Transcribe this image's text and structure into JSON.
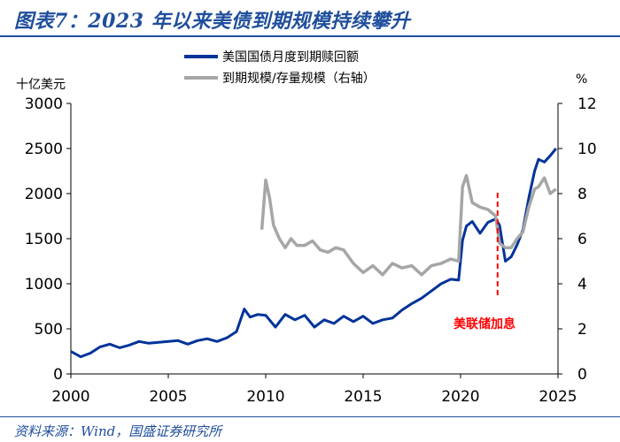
{
  "title": "图表7：2023 年以来美债到期规模持续攀升",
  "source": "资料来源：Wind，国盛证券研究所",
  "chart_data": {
    "type": "line",
    "yleft_unit": "十亿美元",
    "yright_unit": "%",
    "xlim": [
      2000,
      2025
    ],
    "ylim_left": [
      0,
      3000
    ],
    "ylim_right": [
      0,
      12
    ],
    "x_ticks": [
      "2000",
      "2005",
      "2010",
      "2015",
      "2020",
      "2025"
    ],
    "y_left_ticks": [
      "0",
      "500",
      "1000",
      "1500",
      "2000",
      "2500",
      "3000"
    ],
    "y_right_ticks": [
      "0",
      "2",
      "4",
      "6",
      "8",
      "10",
      "12"
    ],
    "grid": false,
    "legend": "top-center",
    "annotation": {
      "x": 2021.9,
      "text": "美联储加息"
    },
    "series": [
      {
        "name": "美国国债月度到期赎回额",
        "axis": "left",
        "color": "#003399",
        "x": [
          2000.0,
          2000.5,
          2001.0,
          2001.5,
          2002.0,
          2002.5,
          2003.0,
          2003.5,
          2004.0,
          2004.5,
          2005.0,
          2005.5,
          2006.0,
          2006.5,
          2007.0,
          2007.5,
          2008.0,
          2008.5,
          2008.9,
          2009.2,
          2009.6,
          2010.0,
          2010.5,
          2011.0,
          2011.5,
          2012.0,
          2012.5,
          2013.0,
          2013.5,
          2014.0,
          2014.5,
          2015.0,
          2015.5,
          2016.0,
          2016.5,
          2017.0,
          2017.5,
          2018.0,
          2018.5,
          2019.0,
          2019.5,
          2019.9,
          2020.1,
          2020.3,
          2020.6,
          2021.0,
          2021.4,
          2021.8,
          2022.0,
          2022.3,
          2022.6,
          2022.9,
          2023.2,
          2023.5,
          2023.8,
          2024.0,
          2024.3,
          2024.6,
          2024.9
        ],
        "y": [
          250,
          190,
          230,
          300,
          330,
          290,
          320,
          360,
          340,
          350,
          360,
          370,
          330,
          370,
          390,
          360,
          400,
          470,
          720,
          630,
          660,
          650,
          520,
          660,
          600,
          650,
          520,
          600,
          560,
          640,
          580,
          640,
          560,
          600,
          620,
          710,
          780,
          840,
          920,
          1000,
          1050,
          1040,
          1480,
          1640,
          1690,
          1560,
          1680,
          1720,
          1650,
          1250,
          1300,
          1430,
          1600,
          1950,
          2250,
          2380,
          2350,
          2420,
          2500
        ]
      },
      {
        "name": "到期规模/存量规模（右轴）",
        "axis": "right",
        "color": "#a6a6a6",
        "x": [
          2009.8,
          2010.0,
          2010.2,
          2010.4,
          2010.7,
          2011.0,
          2011.3,
          2011.6,
          2012.0,
          2012.4,
          2012.8,
          2013.2,
          2013.6,
          2014.0,
          2014.5,
          2015.0,
          2015.5,
          2016.0,
          2016.5,
          2017.0,
          2017.5,
          2018.0,
          2018.5,
          2019.0,
          2019.5,
          2019.9,
          2020.1,
          2020.3,
          2020.6,
          2021.0,
          2021.4,
          2021.8,
          2022.0,
          2022.3,
          2022.6,
          2022.9,
          2023.2,
          2023.5,
          2023.8,
          2024.0,
          2024.3,
          2024.6,
          2024.9
        ],
        "y": [
          6.4,
          8.6,
          7.8,
          6.6,
          6.0,
          5.6,
          6.0,
          5.7,
          5.7,
          5.9,
          5.5,
          5.4,
          5.6,
          5.5,
          4.9,
          4.5,
          4.8,
          4.4,
          4.9,
          4.7,
          4.8,
          4.4,
          4.8,
          4.9,
          5.1,
          5.0,
          8.3,
          8.8,
          7.6,
          7.4,
          7.3,
          7.0,
          5.8,
          5.6,
          5.6,
          6.0,
          6.3,
          7.4,
          8.2,
          8.3,
          8.7,
          8.0,
          8.2
        ]
      }
    ]
  }
}
